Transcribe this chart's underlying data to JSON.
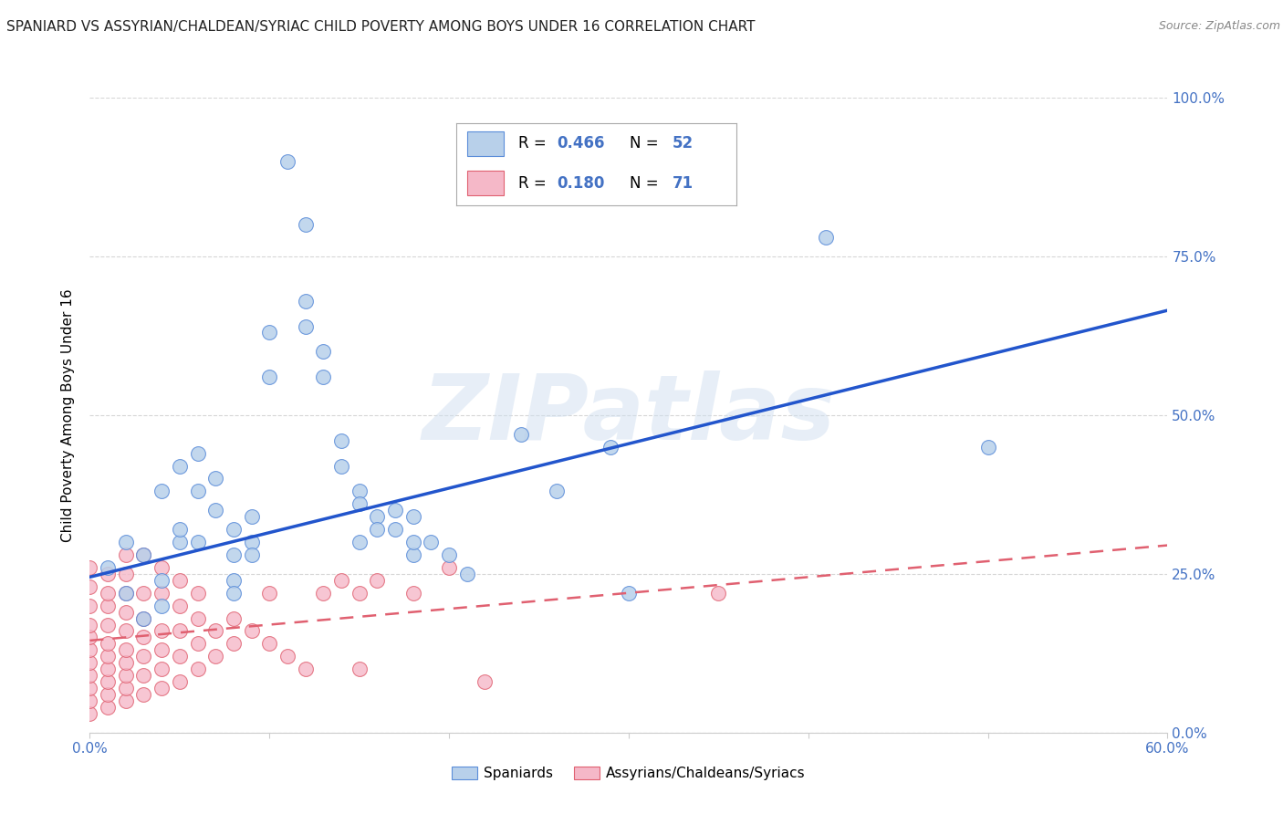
{
  "title": "SPANIARD VS ASSYRIAN/CHALDEAN/SYRIAC CHILD POVERTY AMONG BOYS UNDER 16 CORRELATION CHART",
  "source": "Source: ZipAtlas.com",
  "ylabel": "Child Poverty Among Boys Under 16",
  "xlim": [
    0.0,
    0.6
  ],
  "ylim": [
    0.0,
    1.0
  ],
  "xticks": [
    0.0,
    0.1,
    0.2,
    0.3,
    0.4,
    0.5,
    0.6
  ],
  "yticks": [
    0.0,
    0.25,
    0.5,
    0.75,
    1.0
  ],
  "blue_R": "0.466",
  "blue_N": "52",
  "pink_R": "0.180",
  "pink_N": "71",
  "blue_fill_color": "#b8d0ea",
  "pink_fill_color": "#f5b8c8",
  "blue_edge_color": "#5b8dd9",
  "pink_edge_color": "#e06070",
  "blue_line_color": "#2255cc",
  "pink_line_color": "#e06070",
  "axis_color": "#4472c4",
  "blue_scatter": [
    [
      0.01,
      0.26
    ],
    [
      0.02,
      0.22
    ],
    [
      0.02,
      0.3
    ],
    [
      0.03,
      0.18
    ],
    [
      0.03,
      0.28
    ],
    [
      0.04,
      0.24
    ],
    [
      0.04,
      0.2
    ],
    [
      0.04,
      0.38
    ],
    [
      0.05,
      0.3
    ],
    [
      0.05,
      0.32
    ],
    [
      0.05,
      0.42
    ],
    [
      0.06,
      0.38
    ],
    [
      0.06,
      0.3
    ],
    [
      0.06,
      0.44
    ],
    [
      0.07,
      0.35
    ],
    [
      0.07,
      0.4
    ],
    [
      0.08,
      0.32
    ],
    [
      0.08,
      0.28
    ],
    [
      0.08,
      0.24
    ],
    [
      0.08,
      0.22
    ],
    [
      0.09,
      0.34
    ],
    [
      0.09,
      0.3
    ],
    [
      0.09,
      0.28
    ],
    [
      0.1,
      0.56
    ],
    [
      0.1,
      0.63
    ],
    [
      0.11,
      0.9
    ],
    [
      0.12,
      0.8
    ],
    [
      0.12,
      0.68
    ],
    [
      0.12,
      0.64
    ],
    [
      0.13,
      0.6
    ],
    [
      0.13,
      0.56
    ],
    [
      0.14,
      0.42
    ],
    [
      0.14,
      0.46
    ],
    [
      0.15,
      0.38
    ],
    [
      0.15,
      0.36
    ],
    [
      0.15,
      0.3
    ],
    [
      0.16,
      0.34
    ],
    [
      0.16,
      0.32
    ],
    [
      0.17,
      0.35
    ],
    [
      0.17,
      0.32
    ],
    [
      0.18,
      0.28
    ],
    [
      0.18,
      0.3
    ],
    [
      0.18,
      0.34
    ],
    [
      0.19,
      0.3
    ],
    [
      0.2,
      0.28
    ],
    [
      0.21,
      0.25
    ],
    [
      0.24,
      0.47
    ],
    [
      0.26,
      0.38
    ],
    [
      0.29,
      0.45
    ],
    [
      0.3,
      0.22
    ],
    [
      0.41,
      0.78
    ],
    [
      0.5,
      0.45
    ]
  ],
  "pink_scatter": [
    [
      0.0,
      0.03
    ],
    [
      0.0,
      0.05
    ],
    [
      0.0,
      0.07
    ],
    [
      0.0,
      0.09
    ],
    [
      0.0,
      0.11
    ],
    [
      0.0,
      0.13
    ],
    [
      0.0,
      0.15
    ],
    [
      0.0,
      0.17
    ],
    [
      0.0,
      0.2
    ],
    [
      0.0,
      0.23
    ],
    [
      0.0,
      0.26
    ],
    [
      0.01,
      0.04
    ],
    [
      0.01,
      0.06
    ],
    [
      0.01,
      0.08
    ],
    [
      0.01,
      0.1
    ],
    [
      0.01,
      0.12
    ],
    [
      0.01,
      0.14
    ],
    [
      0.01,
      0.17
    ],
    [
      0.01,
      0.2
    ],
    [
      0.01,
      0.22
    ],
    [
      0.01,
      0.25
    ],
    [
      0.02,
      0.05
    ],
    [
      0.02,
      0.07
    ],
    [
      0.02,
      0.09
    ],
    [
      0.02,
      0.11
    ],
    [
      0.02,
      0.13
    ],
    [
      0.02,
      0.16
    ],
    [
      0.02,
      0.19
    ],
    [
      0.02,
      0.22
    ],
    [
      0.02,
      0.25
    ],
    [
      0.02,
      0.28
    ],
    [
      0.03,
      0.06
    ],
    [
      0.03,
      0.09
    ],
    [
      0.03,
      0.12
    ],
    [
      0.03,
      0.15
    ],
    [
      0.03,
      0.18
    ],
    [
      0.03,
      0.22
    ],
    [
      0.03,
      0.28
    ],
    [
      0.04,
      0.07
    ],
    [
      0.04,
      0.1
    ],
    [
      0.04,
      0.13
    ],
    [
      0.04,
      0.16
    ],
    [
      0.04,
      0.22
    ],
    [
      0.04,
      0.26
    ],
    [
      0.05,
      0.08
    ],
    [
      0.05,
      0.12
    ],
    [
      0.05,
      0.16
    ],
    [
      0.05,
      0.2
    ],
    [
      0.05,
      0.24
    ],
    [
      0.06,
      0.1
    ],
    [
      0.06,
      0.14
    ],
    [
      0.06,
      0.18
    ],
    [
      0.06,
      0.22
    ],
    [
      0.07,
      0.12
    ],
    [
      0.07,
      0.16
    ],
    [
      0.08,
      0.14
    ],
    [
      0.08,
      0.18
    ],
    [
      0.09,
      0.16
    ],
    [
      0.1,
      0.14
    ],
    [
      0.1,
      0.22
    ],
    [
      0.11,
      0.12
    ],
    [
      0.12,
      0.1
    ],
    [
      0.13,
      0.22
    ],
    [
      0.14,
      0.24
    ],
    [
      0.15,
      0.1
    ],
    [
      0.15,
      0.22
    ],
    [
      0.16,
      0.24
    ],
    [
      0.18,
      0.22
    ],
    [
      0.2,
      0.26
    ],
    [
      0.22,
      0.08
    ],
    [
      0.35,
      0.22
    ]
  ],
  "blue_trend": [
    0.0,
    0.6,
    0.245,
    0.665
  ],
  "pink_trend": [
    0.0,
    0.6,
    0.145,
    0.295
  ],
  "watermark_text": "ZIPatlas",
  "legend_r1": "R = ",
  "legend_v1": "0.466",
  "legend_n1": "N = ",
  "legend_nv1": "52",
  "legend_r2": "R = ",
  "legend_v2": "0.180",
  "legend_n2": "N = ",
  "legend_nv2": "71",
  "legend1_label": "Spaniards",
  "legend2_label": "Assyrians/Chaldeans/Syriacs",
  "bg_color": "#ffffff",
  "grid_color": "#cccccc",
  "title_color": "#222222",
  "source_color": "#888888"
}
